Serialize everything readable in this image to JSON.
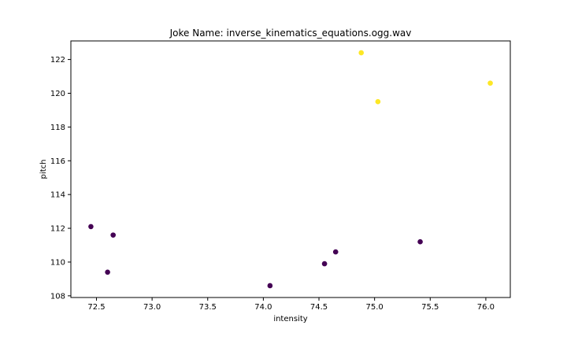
{
  "chart_data": {
    "type": "scatter",
    "title": "Joke Name: inverse_kinematics_equations.ogg.wav",
    "xlabel": "intensity",
    "ylabel": "pitch",
    "xlim": [
      72.27,
      76.22
    ],
    "ylim": [
      107.9,
      123.1
    ],
    "xticks": [
      "72.5",
      "73.0",
      "73.5",
      "74.0",
      "74.5",
      "75.0",
      "75.5",
      "76.0"
    ],
    "yticks": [
      "108",
      "110",
      "112",
      "114",
      "116",
      "118",
      "120",
      "122"
    ],
    "grid": false,
    "colors": {
      "group0": "#440154",
      "group1": "#fde725",
      "axis": "#000000"
    },
    "points": [
      {
        "x": 72.45,
        "y": 112.1,
        "group": 0
      },
      {
        "x": 72.65,
        "y": 111.6,
        "group": 0
      },
      {
        "x": 72.6,
        "y": 109.4,
        "group": 0
      },
      {
        "x": 74.06,
        "y": 108.6,
        "group": 0
      },
      {
        "x": 74.55,
        "y": 109.9,
        "group": 0
      },
      {
        "x": 74.65,
        "y": 110.6,
        "group": 0
      },
      {
        "x": 75.41,
        "y": 111.2,
        "group": 0
      },
      {
        "x": 74.88,
        "y": 122.4,
        "group": 1
      },
      {
        "x": 75.03,
        "y": 119.5,
        "group": 1
      },
      {
        "x": 76.04,
        "y": 120.6,
        "group": 1
      }
    ]
  }
}
